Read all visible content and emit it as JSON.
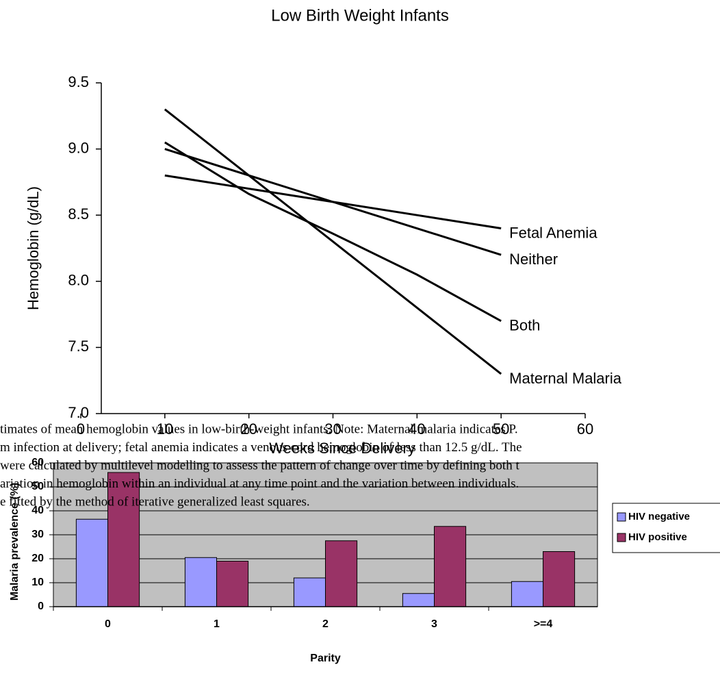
{
  "chart_data": [
    {
      "type": "line",
      "title": "Low Birth Weight Infants",
      "x_label": "Weeks Since Delivery",
      "y_label": "Hemoglobin (g/dL)",
      "x": [
        10,
        20,
        30,
        40,
        50
      ],
      "series": [
        {
          "name": "Fetal Anemia",
          "color": "#000000",
          "values": [
            8.8,
            8.7,
            8.6,
            8.5,
            8.4
          ]
        },
        {
          "name": "Neither",
          "color": "#000000",
          "values": [
            9.0,
            8.8,
            8.6,
            8.4,
            8.2
          ]
        },
        {
          "name": "Both",
          "color": "#000000",
          "values": [
            9.05,
            8.66,
            8.36,
            8.05,
            7.7
          ]
        },
        {
          "name": "Maternal Malaria",
          "color": "#000000",
          "values": [
            9.3,
            8.8,
            8.3,
            7.8,
            7.3
          ]
        }
      ],
      "xlim": [
        0,
        60
      ],
      "xticks": [
        0,
        10,
        20,
        30,
        40,
        50,
        60
      ],
      "ylim": [
        7,
        9.5
      ],
      "yticks": [
        {
          "value": 7,
          "label": "7.0"
        },
        7.5,
        {
          "value": 8,
          "label": "8.0"
        },
        8.5,
        {
          "value": 9,
          "label": "9.0"
        },
        9.5
      ],
      "grid": false,
      "legend": "line-end"
    },
    {
      "type": "bar",
      "x_label": "Parity",
      "y_label": "Malaria prevalence (%)",
      "categories": [
        "0",
        "1",
        "2",
        "3",
        ">=4"
      ],
      "series": [
        {
          "name": "HIV negative",
          "color": "#9999ff",
          "values": [
            36.5,
            20.5,
            12,
            5.5,
            10.5
          ]
        },
        {
          "name": "HIV positive",
          "color": "#993366",
          "values": [
            56,
            19,
            27.5,
            33.5,
            23
          ]
        }
      ],
      "ylim": [
        0,
        60
      ],
      "yticks": [
        0,
        10,
        20,
        30,
        40,
        50,
        60
      ],
      "grid": true,
      "plot_background": "#c0c0c0",
      "legend": "right"
    }
  ],
  "caption": {
    "lines": [
      "timates of mean hemoglobin values in low-birth-weight infants. Note: Maternal malaria indicates P.",
      "m infection at delivery; fetal anemia indicates a venous cord hemoglobin of less than 12.5 g/dL. The",
      "were calculated by multilevel modelling to assess the pattern of change over time by defining both t",
      "ariation in hemoglobin within an individual at any time point and the variation between individuals.",
      "e fitted by the method of iterative generalized least squares."
    ]
  }
}
